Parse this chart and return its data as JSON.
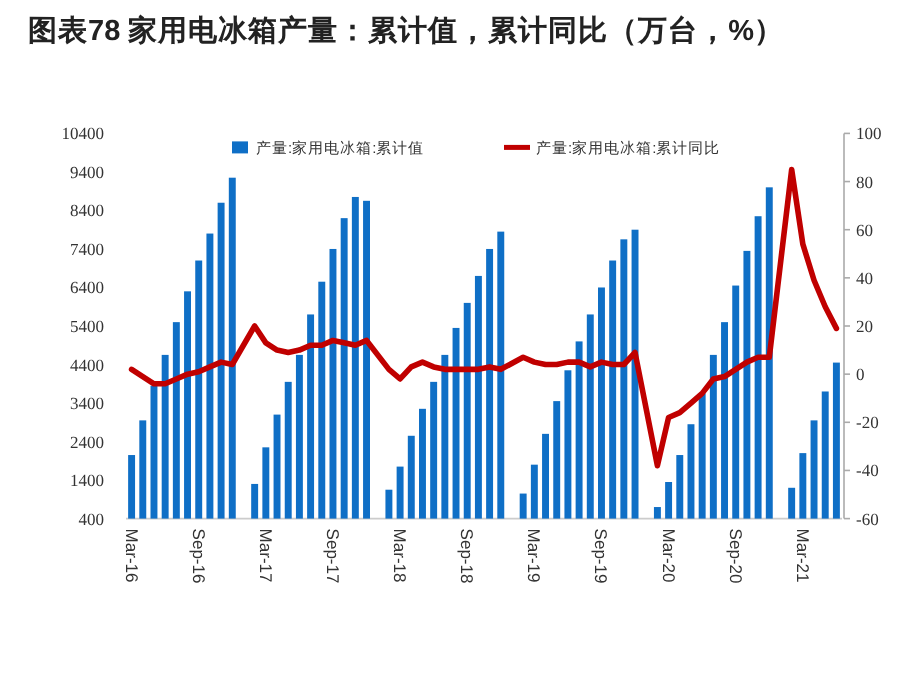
{
  "chart_data": {
    "type": "bar",
    "title": "图表78 家用电冰箱产量：累计值，累计同比（万台，%）",
    "categories": [
      "Mar-16",
      null,
      null,
      null,
      null,
      null,
      "Sep-16",
      null,
      null,
      null,
      null,
      null,
      "Mar-17",
      null,
      null,
      null,
      null,
      null,
      "Sep-17",
      null,
      null,
      null,
      null,
      null,
      "Mar-18",
      null,
      null,
      null,
      null,
      null,
      "Sep-18",
      null,
      null,
      null,
      null,
      null,
      "Mar-19",
      null,
      null,
      null,
      null,
      null,
      "Sep-19",
      null,
      null,
      null,
      null,
      null,
      "Mar-20",
      null,
      null,
      null,
      null,
      null,
      "Sep-20",
      null,
      null,
      null,
      null,
      null,
      "Mar-21",
      null,
      null,
      null
    ],
    "series": [
      {
        "name": "产量:家用电冰箱:累计值",
        "color": "#0f6fc6",
        "values": [
          2050,
          2950,
          3850,
          4650,
          5500,
          6300,
          7100,
          7800,
          8600,
          9250,
          null,
          1300,
          2250,
          3100,
          3950,
          4650,
          5700,
          6550,
          7400,
          8200,
          8750,
          8650,
          null,
          1150,
          1750,
          2550,
          3250,
          3950,
          4650,
          5350,
          6000,
          6700,
          7400,
          7850,
          null,
          1050,
          1800,
          2600,
          3450,
          4250,
          5000,
          5700,
          6400,
          7100,
          7650,
          7900,
          null,
          700,
          1350,
          2050,
          2850,
          3650,
          4650,
          5500,
          6450,
          7350,
          8250,
          9000,
          null,
          1200,
          2100,
          2950,
          3700,
          4450
        ]
      },
      {
        "name": "产量:家用电冰箱:累计同比",
        "type": "line",
        "axis": "y2",
        "color": "#c00000",
        "values": [
          2,
          -1,
          -4,
          -4,
          -2,
          0,
          1,
          3,
          5,
          4,
          null,
          20,
          13,
          10,
          9,
          10,
          12,
          12,
          14,
          13,
          12,
          14,
          null,
          2,
          -2,
          3,
          5,
          3,
          2,
          2,
          2,
          2,
          3,
          2,
          null,
          7,
          5,
          4,
          4,
          5,
          5,
          3,
          5,
          4,
          4,
          9,
          null,
          -38,
          -18,
          -16,
          -12,
          -8,
          -2,
          -1,
          2,
          5,
          7,
          7,
          null,
          85,
          54,
          39,
          28,
          19
        ]
      }
    ],
    "ylim": [
      400,
      10400
    ],
    "yticks": [
      400,
      1400,
      2400,
      3400,
      4400,
      5400,
      6400,
      7400,
      8400,
      9400,
      10400
    ],
    "y2lim": [
      -60,
      100
    ],
    "y2ticks": [
      -60,
      -40,
      -20,
      0,
      20,
      40,
      60,
      80,
      100
    ],
    "legend": "top"
  }
}
